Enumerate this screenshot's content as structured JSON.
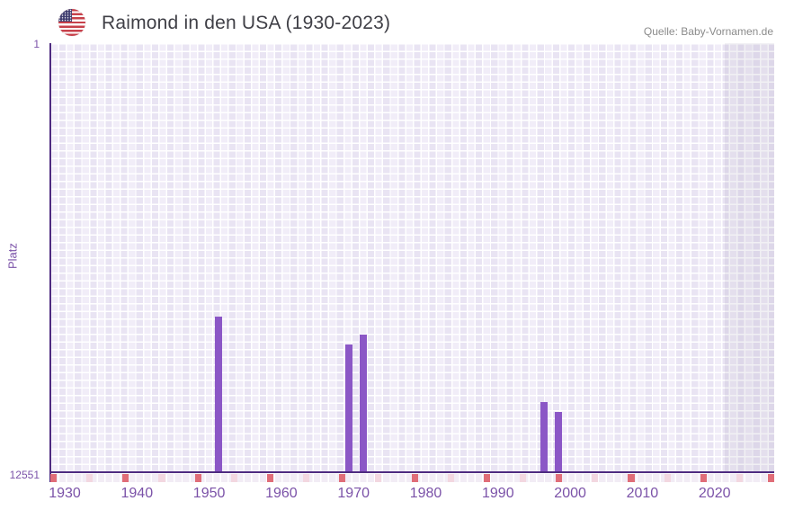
{
  "header": {
    "title": "Raimond in den USA (1930-2023)",
    "source": "Quelle: Baby-Vornamen.de",
    "flag": "usa-flag-icon"
  },
  "chart_data": {
    "type": "bar",
    "title": "Raimond in den USA (1930-2023)",
    "xlabel": "",
    "ylabel": "Platz",
    "y_axis": {
      "top_tick": "1",
      "bottom_tick": "12551",
      "min": 1,
      "max": 12551,
      "inverted": true
    },
    "x_ticks": [
      "1930",
      "1940",
      "1950",
      "1960",
      "1970",
      "1980",
      "1990",
      "2000",
      "2010",
      "2020"
    ],
    "x_tick_years": [
      1930,
      1940,
      1950,
      1960,
      1970,
      1980,
      1990,
      2000,
      2010,
      2020
    ],
    "x_range_label": "1930-2023",
    "grid": true,
    "legend": false,
    "bars": [
      {
        "year": 1951,
        "platz": 8020
      },
      {
        "year": 1969,
        "platz": 8840
      },
      {
        "year": 1971,
        "platz": 8530
      },
      {
        "year": 1996,
        "platz": 10520
      },
      {
        "year": 1998,
        "platz": 10800
      }
    ],
    "colors": {
      "bar": "#8b57c6",
      "axis": "#4e2b80",
      "tick_label": "#7b52a8",
      "grid_light": "#f1edf8",
      "grid_dark": "#e9e4f3",
      "right_band_overlay": "rgba(99,85,135,0.09)",
      "ribbon_red": "#e06d78",
      "ribbon_pink": "#f3d7e0",
      "ribbon_base": "#f2ecf5",
      "title_text": "#3f3f46",
      "source_text": "#8b8b8b"
    }
  }
}
